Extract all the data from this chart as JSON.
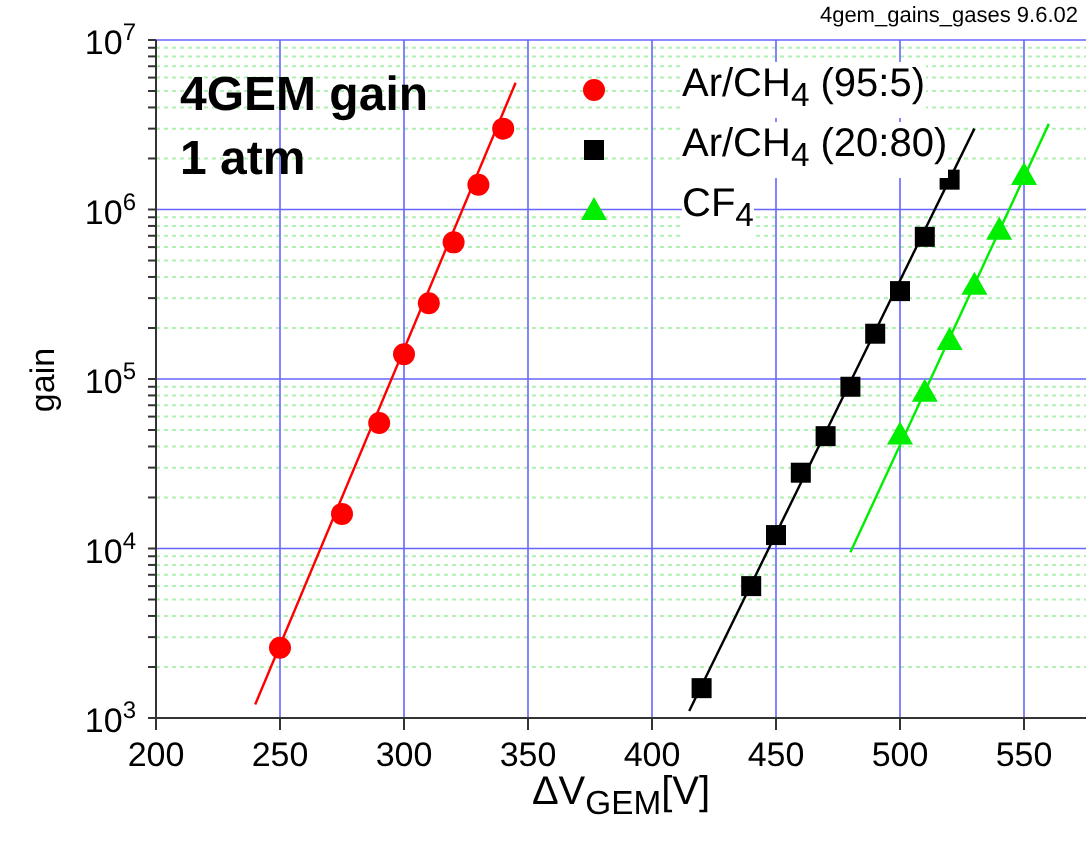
{
  "chart_data": {
    "type": "scatter",
    "xlabel": "ΔV$_{GEM}$[V]",
    "ylabel": "gain",
    "annotations": [
      "4gem_gains_gases  9.6.02",
      "4GEM gain",
      "1 atm"
    ],
    "log": "y",
    "grid": true,
    "legend": "top",
    "xlim": [
      200,
      575
    ],
    "xticks": [
      200,
      250,
      300,
      350,
      400,
      450,
      500,
      550
    ],
    "ylim": [
      1000,
      10000000
    ],
    "yticks": [
      {
        "value": 1000,
        "label": "10$^{3}$"
      },
      {
        "value": 2000,
        "label": null
      },
      {
        "value": 3000,
        "label": null
      },
      {
        "value": 4000,
        "label": null
      },
      {
        "value": 5000,
        "label": null
      },
      {
        "value": 6000,
        "label": null
      },
      {
        "value": 7000,
        "label": null
      },
      {
        "value": 8000,
        "label": null
      },
      {
        "value": 9000,
        "label": null
      },
      {
        "value": 10000,
        "label": "10$^{4}$"
      },
      {
        "value": 20000,
        "label": null
      },
      {
        "value": 30000,
        "label": null
      },
      {
        "value": 40000,
        "label": null
      },
      {
        "value": 50000,
        "label": null
      },
      {
        "value": 60000,
        "label": null
      },
      {
        "value": 70000,
        "label": null
      },
      {
        "value": 80000,
        "label": null
      },
      {
        "value": 90000,
        "label": null
      },
      {
        "value": 100000,
        "label": "10$^{5}$"
      },
      {
        "value": 200000,
        "label": null
      },
      {
        "value": 300000,
        "label": null
      },
      {
        "value": 400000,
        "label": null
      },
      {
        "value": 500000,
        "label": null
      },
      {
        "value": 600000,
        "label": null
      },
      {
        "value": 700000,
        "label": null
      },
      {
        "value": 800000,
        "label": null
      },
      {
        "value": 900000,
        "label": null
      },
      {
        "value": 1000000,
        "label": "10$^{6}$"
      },
      {
        "value": 2000000,
        "label": null
      },
      {
        "value": 3000000,
        "label": null
      },
      {
        "value": 4000000,
        "label": null
      },
      {
        "value": 5000000,
        "label": null
      },
      {
        "value": 6000000,
        "label": null
      },
      {
        "value": 7000000,
        "label": null
      },
      {
        "value": 8000000,
        "label": null
      },
      {
        "value": 9000000,
        "label": null
      },
      {
        "value": 10000000,
        "label": "10$^{7}$"
      }
    ],
    "series": [
      {
        "name": "Ar/CH$_{4}$ (95:5)",
        "marker": "circle",
        "color": "#ff0000",
        "x": [
          250,
          275,
          290,
          300,
          310,
          320,
          330,
          340
        ],
        "values": [
          2600,
          16000,
          55000,
          140000,
          280000,
          640000,
          1400000,
          3000000
        ]
      },
      {
        "name": "Ar/CH$_{4}$ (20:80)",
        "marker": "square",
        "color": "#000000",
        "x": [
          420,
          440,
          450,
          460,
          470,
          480,
          490,
          500,
          510,
          520
        ],
        "values": [
          1500,
          6000,
          12000,
          28000,
          46000,
          90000,
          185000,
          330000,
          690000,
          1500000
        ]
      },
      {
        "name": "CF$_{4}$",
        "marker": "triangle",
        "color": "#00ee00",
        "x": [
          500,
          510,
          520,
          530,
          540,
          550
        ],
        "values": [
          47000,
          84000,
          170000,
          360000,
          760000,
          1600000
        ]
      },
      {
        "type": "line",
        "marker": "none",
        "color": "#ff0000",
        "x": [
          240,
          345
        ],
        "values": [
          1200,
          5600000
        ]
      },
      {
        "type": "line",
        "marker": "none",
        "color": "#000000",
        "x": [
          415,
          530
        ],
        "values": [
          1100,
          3000000
        ]
      },
      {
        "type": "line",
        "marker": "none",
        "color": "#00ee00",
        "x": [
          480,
          560
        ],
        "values": [
          9500,
          3200000
        ]
      }
    ]
  }
}
